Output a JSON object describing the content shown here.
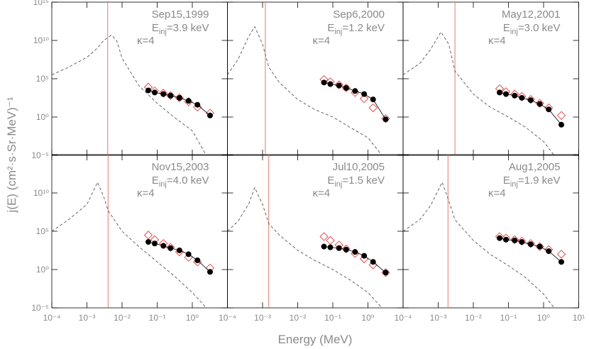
{
  "chart_data": {
    "type": "panel-grid",
    "x_label": "Energy (MeV)",
    "y_label": "j(E) (cm²·s·Sr·MeV)⁻¹",
    "xscale": "log",
    "yscale": "log",
    "xlim": [
      0.0001,
      10
    ],
    "ylim": [
      1e-05,
      1000000000000000.0
    ],
    "xticks": [
      {
        "value": 0.0001,
        "label": "10⁻⁴"
      },
      {
        "value": 0.001,
        "label": "10⁻³"
      },
      {
        "value": 0.01,
        "label": "10⁻²"
      },
      {
        "value": 0.1,
        "label": "10⁻¹"
      },
      {
        "value": 1,
        "label": "10⁰"
      },
      {
        "value": 10,
        "label": "10¹"
      }
    ],
    "yticks": [
      {
        "value": 1e-05,
        "label": "10⁻⁵"
      },
      {
        "value": 1,
        "label": "10⁰"
      },
      {
        "value": 100000,
        "label": "10⁵"
      },
      {
        "value": 10000000000,
        "label": "10¹⁰"
      },
      {
        "value": 1000000000000000.0,
        "label": "10¹⁵"
      }
    ],
    "vline_color": "#e07a6a",
    "panels": [
      {
        "type": "line",
        "title": "Sep15,1999",
        "annotations": [
          "Einj=3.9 keV",
          "κ=4"
        ],
        "vline_x": 0.0039,
        "series": [
          {
            "style": "dashed",
            "color": "#555555",
            "x": [
              0.0001,
              0.0003,
              0.001,
              0.002,
              0.003,
              0.005,
              0.007,
              0.01,
              0.03,
              0.1,
              0.3,
              1,
              2.5
            ],
            "values": [
              320000,
              3200000,
              63000000,
              1000000000,
              10000000000,
              50000000000,
              10000000000,
              50000000,
              13000,
              63,
              1,
              0.016,
              1e-05
            ]
          },
          {
            "marker": "diamond",
            "color": "#e0504f",
            "x": [
              0.056,
              0.085,
              0.15,
              0.24,
              0.43,
              0.78,
              1.4,
              3.2
            ],
            "values": [
              8000,
              2500,
              1300,
              630,
              320,
              100,
              20,
              3.2
            ]
          },
          {
            "marker": "circle",
            "color": "#000000",
            "x": [
              0.056,
              0.085,
              0.15,
              0.24,
              0.43,
              0.78,
              1.4,
              3.2
            ],
            "values": [
              3000,
              1600,
              1000,
              630,
              320,
              130,
              40,
              1.6
            ]
          }
        ]
      },
      {
        "type": "line",
        "title": "Sep6,2000",
        "annotations": [
          "Einj=1.2 keV",
          "κ=4"
        ],
        "vline_x": 0.0012,
        "series": [
          {
            "style": "dashed",
            "color": "#555555",
            "x": [
              0.0001,
              0.0002,
              0.0004,
              0.0006,
              0.001,
              0.0015,
              0.003,
              0.01,
              0.03,
              0.1,
              0.3,
              1,
              2.5
            ],
            "values": [
              320000,
              32000000,
              32000000000,
              630000000000,
              3200000000,
              3200000,
              32000,
              200,
              10,
              1,
              0.05,
              0.002,
              1e-05
            ]
          },
          {
            "marker": "diamond",
            "color": "#e0504f",
            "x": [
              0.056,
              0.085,
              0.15,
              0.24,
              0.43,
              0.78,
              1.4,
              3.2
            ],
            "values": [
              80000,
              40000,
              16000,
              6300,
              1600,
              250,
              16,
              0.63
            ]
          },
          {
            "marker": "circle",
            "color": "#000000",
            "x": [
              0.056,
              0.085,
              0.15,
              0.24,
              0.43,
              0.78,
              1.4,
              3.2
            ],
            "values": [
              32000,
              20000,
              13000,
              6300,
              2500,
              1000,
              200,
              0.5
            ]
          }
        ]
      },
      {
        "type": "line",
        "title": "May12,2001",
        "annotations": [
          "Einj=3.0 keV",
          "κ=4"
        ],
        "vline_x": 0.003,
        "series": [
          {
            "style": "dashed",
            "color": "#555555",
            "x": [
              0.0001,
              0.0003,
              0.0006,
              0.0012,
              0.002,
              0.003,
              0.01,
              0.03,
              0.1,
              0.3,
              1,
              2
            ],
            "values": [
              320000,
              10000000,
              630000000,
              130000000000,
              3200000000,
              1000000,
              1000,
              20,
              1,
              0.05,
              0.00063,
              1e-05
            ]
          },
          {
            "marker": "diamond",
            "color": "#e0504f",
            "x": [
              0.056,
              0.085,
              0.15,
              0.24,
              0.43,
              0.78,
              1.4,
              3.2
            ],
            "values": [
              5000,
              2000,
              1000,
              500,
              200,
              63,
              16,
              1.6
            ]
          },
          {
            "marker": "circle",
            "color": "#000000",
            "x": [
              0.056,
              0.085,
              0.15,
              0.24,
              0.43,
              0.78,
              1.4,
              3.2
            ],
            "values": [
              1600,
              1000,
              630,
              320,
              160,
              50,
              10,
              0.1
            ]
          }
        ]
      },
      {
        "type": "line",
        "title": "Nov15,2003",
        "annotations": [
          "Einj=4.0 keV",
          "κ=4"
        ],
        "vline_x": 0.004,
        "series": [
          {
            "style": "dashed",
            "color": "#555555",
            "x": [
              0.0001,
              0.0003,
              0.001,
              0.002,
              0.003,
              0.004,
              0.01,
              0.03,
              0.1,
              0.3,
              1,
              2.5
            ],
            "values": [
              100000,
              3200000,
              320000000,
              250000000000,
              3200000000,
              50000000,
              100000,
              1000,
              10,
              0.16,
              0.001,
              1e-05
            ]
          },
          {
            "marker": "diamond",
            "color": "#e0504f",
            "x": [
              0.056,
              0.085,
              0.15,
              0.24,
              0.43,
              0.78,
              1.4,
              3.2
            ],
            "values": [
              32000,
              8000,
              2500,
              800,
              200,
              40,
              10,
              1.6
            ]
          },
          {
            "marker": "circle",
            "color": "#000000",
            "x": [
              0.056,
              0.085,
              0.15,
              0.24,
              0.43,
              0.78,
              1.4,
              3.2
            ],
            "values": [
              4000,
              2500,
              1250,
              630,
              320,
              100,
              16,
              0.5
            ]
          }
        ]
      },
      {
        "type": "line",
        "title": "Jul10,2005",
        "annotations": [
          "Einj=1.5 keV",
          "κ=4"
        ],
        "vline_x": 0.0015,
        "series": [
          {
            "style": "dashed",
            "color": "#555555",
            "x": [
              0.0001,
              0.0002,
              0.0004,
              0.0006,
              0.001,
              0.0015,
              0.003,
              0.01,
              0.03,
              0.1,
              0.3,
              1,
              2.5
            ],
            "values": [
              100000,
              2000000,
              320000000,
              50000000000,
              320000000,
              1000000,
              32000,
              320,
              16,
              1,
              0.05,
              0.001,
              1e-05
            ]
          },
          {
            "marker": "diamond",
            "color": "#e0504f",
            "x": [
              0.056,
              0.085,
              0.15,
              0.24,
              0.43,
              0.78,
              1.4,
              3.2
            ],
            "values": [
              20000,
              6300,
              1600,
              500,
              125,
              25,
              4,
              0.4
            ]
          },
          {
            "marker": "circle",
            "color": "#000000",
            "x": [
              0.056,
              0.085,
              0.15,
              0.24,
              0.43,
              0.78,
              1.4,
              3.2
            ],
            "values": [
              1000,
              800,
              630,
              400,
              200,
              63,
              10,
              0.4
            ]
          }
        ]
      },
      {
        "type": "line",
        "title": "Aug1,2005",
        "annotations": [
          "Einj=1.9 keV",
          "κ=4"
        ],
        "vline_x": 0.0019,
        "series": [
          {
            "style": "dashed",
            "color": "#555555",
            "x": [
              0.0001,
              0.0003,
              0.0006,
              0.0013,
              0.002,
              0.003,
              0.01,
              0.03,
              0.1,
              0.3,
              1,
              2
            ],
            "values": [
              100000,
              3200000,
              200000000,
              250000000000,
              1000000000,
              3200000,
              6300,
              100,
              3.2,
              0.1,
              0.00063,
              1e-05
            ]
          },
          {
            "marker": "diamond",
            "color": "#e0504f",
            "x": [
              0.056,
              0.085,
              0.15,
              0.24,
              0.43,
              0.78,
              1.4,
              3.2
            ],
            "values": [
              20000,
              12600,
              8000,
              5000,
              2500,
              1000,
              400,
              100
            ]
          },
          {
            "marker": "circle",
            "color": "#000000",
            "x": [
              0.056,
              0.085,
              0.15,
              0.24,
              0.43,
              0.78,
              1.4,
              3.2
            ],
            "values": [
              12600,
              8000,
              6300,
              4000,
              2000,
              1000,
              250,
              10
            ]
          }
        ]
      }
    ]
  }
}
